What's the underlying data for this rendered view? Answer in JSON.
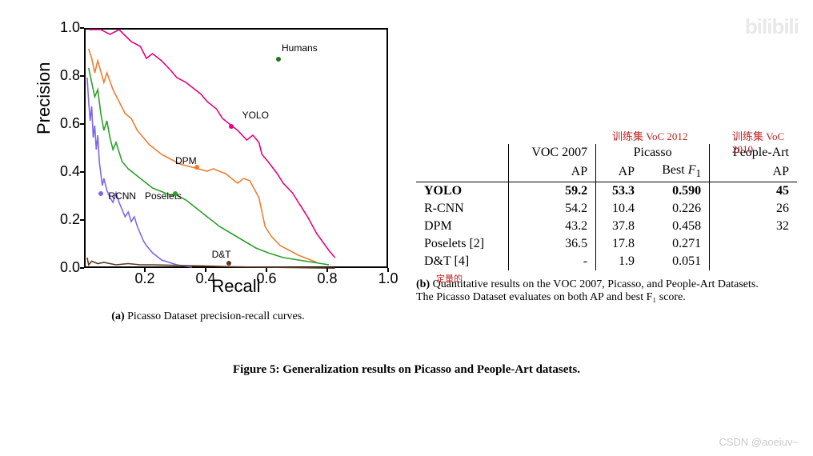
{
  "chart": {
    "type": "line",
    "xlabel": "Recall",
    "ylabel": "Precision",
    "xlim": [
      0,
      1.0
    ],
    "ylim": [
      0,
      1.0
    ],
    "xtick_step": 0.2,
    "ytick_step": 0.2,
    "background_color": "#ffffff",
    "border_color": "#000000",
    "axis_fontsize": 22,
    "tick_fontsize": 18,
    "label_fontsize": 12,
    "line_width": 1.6,
    "series": [
      {
        "name": "YOLO",
        "color": "#e6007e",
        "label_xy": [
          0.52,
          0.64
        ],
        "marker_xy": [
          0.485,
          0.59
        ],
        "points": [
          [
            0.01,
            1.0
          ],
          [
            0.03,
            1.0
          ],
          [
            0.05,
            1.0
          ],
          [
            0.08,
            0.98
          ],
          [
            0.11,
            1.0
          ],
          [
            0.15,
            0.95
          ],
          [
            0.18,
            0.93
          ],
          [
            0.2,
            0.88
          ],
          [
            0.22,
            0.9
          ],
          [
            0.25,
            0.87
          ],
          [
            0.28,
            0.83
          ],
          [
            0.3,
            0.8
          ],
          [
            0.33,
            0.78
          ],
          [
            0.35,
            0.76
          ],
          [
            0.38,
            0.73
          ],
          [
            0.4,
            0.7
          ],
          [
            0.43,
            0.67
          ],
          [
            0.45,
            0.63
          ],
          [
            0.48,
            0.6
          ],
          [
            0.5,
            0.58
          ],
          [
            0.53,
            0.54
          ],
          [
            0.55,
            0.56
          ],
          [
            0.57,
            0.53
          ],
          [
            0.58,
            0.48
          ],
          [
            0.6,
            0.45
          ],
          [
            0.63,
            0.4
          ],
          [
            0.65,
            0.36
          ],
          [
            0.68,
            0.32
          ],
          [
            0.7,
            0.28
          ],
          [
            0.73,
            0.22
          ],
          [
            0.76,
            0.15
          ],
          [
            0.8,
            0.08
          ],
          [
            0.82,
            0.05
          ]
        ]
      },
      {
        "name": "DPM",
        "color": "#ed7d31",
        "label_xy": [
          0.3,
          0.45
        ],
        "marker_xy": [
          0.37,
          0.42
        ],
        "points": [
          [
            0.01,
            0.92
          ],
          [
            0.02,
            0.88
          ],
          [
            0.03,
            0.82
          ],
          [
            0.04,
            0.87
          ],
          [
            0.06,
            0.78
          ],
          [
            0.07,
            0.82
          ],
          [
            0.09,
            0.75
          ],
          [
            0.11,
            0.7
          ],
          [
            0.13,
            0.65
          ],
          [
            0.15,
            0.63
          ],
          [
            0.17,
            0.58
          ],
          [
            0.19,
            0.55
          ],
          [
            0.21,
            0.52
          ],
          [
            0.23,
            0.5
          ],
          [
            0.25,
            0.48
          ],
          [
            0.28,
            0.46
          ],
          [
            0.31,
            0.44
          ],
          [
            0.34,
            0.43
          ],
          [
            0.37,
            0.42
          ],
          [
            0.4,
            0.41
          ],
          [
            0.42,
            0.42
          ],
          [
            0.44,
            0.41
          ],
          [
            0.46,
            0.4
          ],
          [
            0.48,
            0.38
          ],
          [
            0.5,
            0.36
          ],
          [
            0.52,
            0.38
          ],
          [
            0.54,
            0.37
          ],
          [
            0.57,
            0.3
          ],
          [
            0.58,
            0.24
          ],
          [
            0.59,
            0.18
          ],
          [
            0.61,
            0.14
          ],
          [
            0.64,
            0.1
          ],
          [
            0.7,
            0.06
          ],
          [
            0.76,
            0.03
          ]
        ]
      },
      {
        "name": "Poselets",
        "color": "#2ca02c",
        "label_xy": [
          0.2,
          0.305
        ],
        "marker_xy": [
          0.3,
          0.31
        ],
        "points": [
          [
            0.01,
            0.84
          ],
          [
            0.02,
            0.78
          ],
          [
            0.03,
            0.72
          ],
          [
            0.04,
            0.75
          ],
          [
            0.05,
            0.65
          ],
          [
            0.06,
            0.58
          ],
          [
            0.07,
            0.62
          ],
          [
            0.08,
            0.55
          ],
          [
            0.09,
            0.5
          ],
          [
            0.1,
            0.53
          ],
          [
            0.12,
            0.45
          ],
          [
            0.14,
            0.42
          ],
          [
            0.16,
            0.4
          ],
          [
            0.18,
            0.38
          ],
          [
            0.2,
            0.36
          ],
          [
            0.22,
            0.34
          ],
          [
            0.24,
            0.33
          ],
          [
            0.26,
            0.32
          ],
          [
            0.28,
            0.31
          ],
          [
            0.3,
            0.31
          ],
          [
            0.33,
            0.29
          ],
          [
            0.36,
            0.26
          ],
          [
            0.4,
            0.22
          ],
          [
            0.44,
            0.18
          ],
          [
            0.48,
            0.15
          ],
          [
            0.52,
            0.12
          ],
          [
            0.56,
            0.09
          ],
          [
            0.6,
            0.07
          ],
          [
            0.65,
            0.05
          ],
          [
            0.7,
            0.04
          ],
          [
            0.75,
            0.03
          ],
          [
            0.8,
            0.02
          ]
        ]
      },
      {
        "name": "RCNN",
        "color": "#7b68ee",
        "label_xy": [
          0.08,
          0.305
        ],
        "marker_xy": [
          0.055,
          0.31
        ],
        "points": [
          [
            0.005,
            0.8
          ],
          [
            0.01,
            0.7
          ],
          [
            0.015,
            0.62
          ],
          [
            0.02,
            0.68
          ],
          [
            0.025,
            0.55
          ],
          [
            0.03,
            0.6
          ],
          [
            0.035,
            0.5
          ],
          [
            0.04,
            0.56
          ],
          [
            0.045,
            0.45
          ],
          [
            0.05,
            0.4
          ],
          [
            0.055,
            0.35
          ],
          [
            0.06,
            0.38
          ],
          [
            0.07,
            0.33
          ],
          [
            0.08,
            0.3
          ],
          [
            0.09,
            0.28
          ],
          [
            0.1,
            0.32
          ],
          [
            0.11,
            0.28
          ],
          [
            0.12,
            0.25
          ],
          [
            0.13,
            0.22
          ],
          [
            0.14,
            0.24
          ],
          [
            0.15,
            0.2
          ],
          [
            0.16,
            0.22
          ],
          [
            0.17,
            0.18
          ],
          [
            0.18,
            0.15
          ],
          [
            0.19,
            0.12
          ],
          [
            0.2,
            0.1
          ],
          [
            0.22,
            0.07
          ],
          [
            0.25,
            0.04
          ],
          [
            0.3,
            0.02
          ],
          [
            0.35,
            0.01
          ]
        ]
      },
      {
        "name": "D&T",
        "color": "#5c3a21",
        "label_xy": [
          0.42,
          0.06
        ],
        "marker_xy": [
          0.475,
          0.02
        ],
        "points": [
          [
            0.005,
            0.05
          ],
          [
            0.01,
            0.02
          ],
          [
            0.02,
            0.035
          ],
          [
            0.04,
            0.025
          ],
          [
            0.06,
            0.03
          ],
          [
            0.08,
            0.025
          ],
          [
            0.1,
            0.02
          ],
          [
            0.14,
            0.025
          ],
          [
            0.18,
            0.02
          ],
          [
            0.22,
            0.02
          ],
          [
            0.28,
            0.018
          ],
          [
            0.34,
            0.016
          ],
          [
            0.4,
            0.015
          ],
          [
            0.48,
            0.012
          ],
          [
            0.58,
            0.01
          ],
          [
            0.7,
            0.008
          ],
          [
            0.82,
            0.006
          ]
        ]
      }
    ],
    "extra_markers": [
      {
        "name": "Humans",
        "color": "#1a7a1a",
        "xy": [
          0.64,
          0.87
        ],
        "label_xy": [
          0.65,
          0.92
        ]
      }
    ]
  },
  "subcaption_a": "(a) Picasso Dataset precision-recall curves.",
  "table": {
    "groups": [
      "VOC 2007",
      "Picasso",
      "People-Art"
    ],
    "subheaders": [
      "AP",
      "AP",
      "Best F₁",
      "AP"
    ],
    "rows": [
      {
        "method": "YOLO",
        "bold": true,
        "voc_ap": "59.2",
        "pic_ap": "53.3",
        "pic_f1": "0.590",
        "pa_ap": "45"
      },
      {
        "method": "R-CNN",
        "bold": false,
        "voc_ap": "54.2",
        "pic_ap": "10.4",
        "pic_f1": "0.226",
        "pa_ap": "26"
      },
      {
        "method": "DPM",
        "bold": false,
        "voc_ap": "43.2",
        "pic_ap": "37.8",
        "pic_f1": "0.458",
        "pa_ap": "32"
      },
      {
        "method": "Poselets [2]",
        "bold": false,
        "voc_ap": "36.5",
        "pic_ap": "17.8",
        "pic_f1": "0.271",
        "pa_ap": ""
      },
      {
        "method": "D&T [4]",
        "bold": false,
        "voc_ap": "-",
        "pic_ap": "1.9",
        "pic_f1": "0.051",
        "pa_ap": ""
      }
    ]
  },
  "subcaption_b_1": "(b) Quantitative results on the VOC 2007, Picasso, and People-Art Datasets.",
  "subcaption_b_2": "The Picasso Dataset evaluates on both AP and best F₁ score.",
  "annotations": {
    "picasso": "训练集 VoC 2012",
    "peopleart": "训练集 VoC 2010",
    "quant": "定量的"
  },
  "figure_caption_bold": "Figure 5:",
  "figure_caption_rest": " Generalization results on Picasso and People-Art datasets.",
  "watermark1": "bilibili",
  "watermark2": "CSDN @aoeiuv~"
}
